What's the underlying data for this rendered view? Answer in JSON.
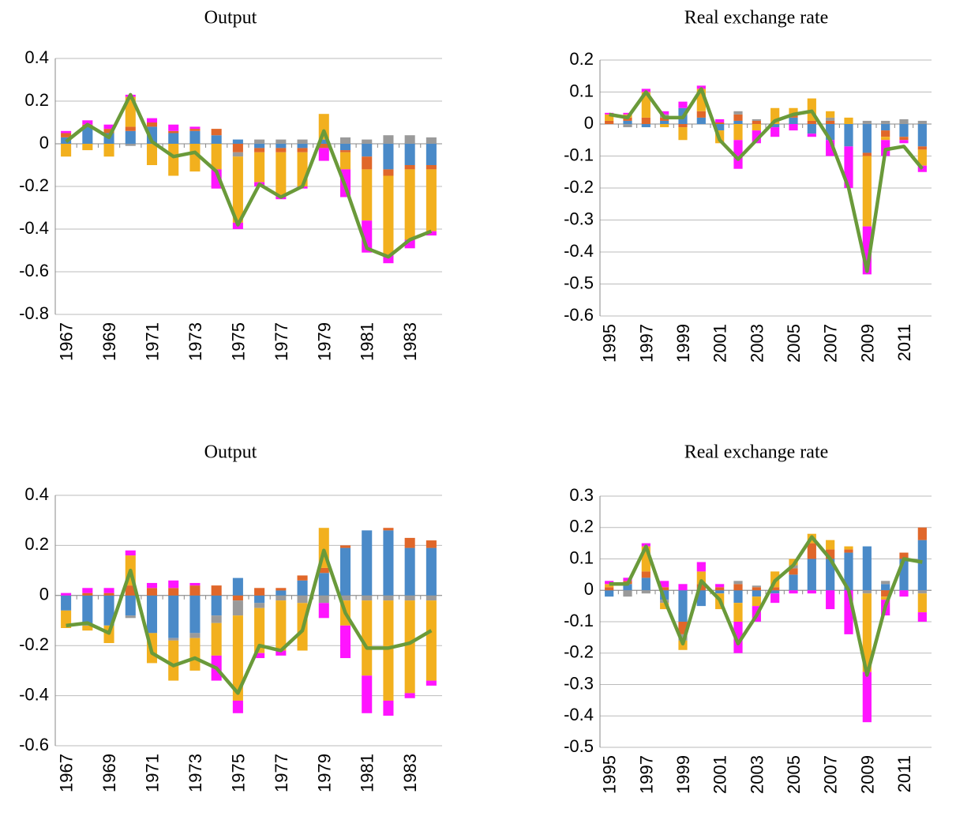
{
  "chart_data": [
    {
      "type": "bar",
      "title": "Output",
      "categories": [
        "1967",
        null,
        "1969",
        null,
        "1971",
        null,
        "1973",
        null,
        "1975",
        null,
        "1977",
        null,
        "1979",
        null,
        "1981",
        null,
        "1983",
        null
      ],
      "ylim": [
        -0.8,
        0.4
      ],
      "yticks": [
        -0.8,
        -0.6,
        -0.4,
        -0.2,
        0,
        0.2,
        0.4
      ],
      "grid": true,
      "series": [
        {
          "color": "#4a8ac8",
          "values": [
            0.03,
            0.08,
            0.05,
            0.06,
            0.08,
            0.05,
            0.06,
            0.04,
            0.02,
            -0.02,
            -0.02,
            -0.02,
            0.02,
            -0.03,
            -0.06,
            -0.12,
            -0.1,
            -0.1
          ]
        },
        {
          "color": "#e0672a",
          "values": [
            0.02,
            0.01,
            0.02,
            0.02,
            0.02,
            0.01,
            0.01,
            0.03,
            -0.04,
            -0.02,
            -0.02,
            -0.02,
            -0.02,
            -0.01,
            -0.06,
            -0.03,
            -0.02,
            -0.02
          ]
        },
        {
          "color": "#9a9a9a",
          "values": [
            0,
            0,
            0,
            -0.01,
            0,
            0,
            0,
            0,
            -0.02,
            0.02,
            0.02,
            0.02,
            0,
            0.03,
            0.02,
            0.04,
            0.04,
            0.03
          ]
        },
        {
          "color": "#f2b01e",
          "values": [
            -0.06,
            -0.03,
            -0.06,
            0.14,
            -0.1,
            -0.15,
            -0.13,
            -0.12,
            -0.31,
            -0.14,
            -0.2,
            -0.16,
            0.12,
            -0.08,
            -0.24,
            -0.37,
            -0.33,
            -0.29
          ]
        },
        {
          "color": "#ff14ff",
          "values": [
            0.01,
            0.02,
            0.02,
            0.01,
            0.02,
            0.03,
            0.01,
            -0.09,
            -0.03,
            -0.02,
            -0.02,
            -0.01,
            -0.06,
            -0.13,
            -0.15,
            -0.04,
            -0.04,
            -0.02
          ]
        },
        {
          "type": "line",
          "color": "#6a9a3a",
          "values": [
            0.01,
            0.09,
            0.03,
            0.23,
            0.01,
            -0.06,
            -0.04,
            -0.13,
            -0.38,
            -0.19,
            -0.25,
            -0.2,
            0.06,
            -0.2,
            -0.49,
            -0.53,
            -0.45,
            -0.41
          ]
        }
      ]
    },
    {
      "type": "bar",
      "title": "Real exchange rate",
      "categories": [
        "1995",
        null,
        "1997",
        null,
        "1999",
        null,
        "2001",
        null,
        "2003",
        null,
        "2005",
        null,
        "2007",
        null,
        "2009",
        null,
        "2011",
        null
      ],
      "ylim": [
        -0.6,
        0.2
      ],
      "yticks": [
        -0.6,
        -0.5,
        -0.4,
        -0.3,
        -0.2,
        -0.1,
        0,
        0.1,
        0.2
      ],
      "grid": true,
      "series": [
        {
          "color": "#4a8ac8",
          "values": [
            0,
            0.01,
            -0.01,
            0.01,
            0.05,
            0.02,
            -0.02,
            0.01,
            0,
            -0.01,
            0.02,
            -0.03,
            -0.05,
            -0.07,
            -0.09,
            -0.02,
            -0.04,
            -0.07
          ]
        },
        {
          "color": "#e0672a",
          "values": [
            0.01,
            0.01,
            0.02,
            0.01,
            -0.01,
            0.02,
            0.005,
            0.02,
            0.01,
            0,
            0.01,
            0.01,
            0.01,
            0,
            -0.01,
            -0.02,
            -0.01,
            -0.01
          ]
        },
        {
          "color": "#9a9a9a",
          "values": [
            0,
            -0.01,
            0,
            0.01,
            0,
            0,
            0,
            0.01,
            0.005,
            0,
            0,
            0,
            0.01,
            0,
            0.01,
            0.01,
            0.015,
            0.01
          ]
        },
        {
          "color": "#f2b01e",
          "values": [
            0.02,
            0.01,
            0.08,
            -0.01,
            -0.04,
            0.07,
            -0.04,
            -0.05,
            -0.02,
            0.05,
            0.02,
            0.07,
            0.02,
            0.02,
            -0.22,
            -0.01,
            0,
            -0.05
          ]
        },
        {
          "color": "#ff14ff",
          "values": [
            0.005,
            0.005,
            0.01,
            0.01,
            0.02,
            0.01,
            0.01,
            -0.09,
            -0.04,
            -0.03,
            -0.02,
            -0.01,
            -0.05,
            -0.13,
            -0.15,
            -0.05,
            -0.01,
            -0.02
          ]
        },
        {
          "type": "line",
          "color": "#6a9a3a",
          "values": [
            0.03,
            0.02,
            0.1,
            0.02,
            0.02,
            0.11,
            -0.05,
            -0.11,
            -0.05,
            0.01,
            0.03,
            0.04,
            -0.05,
            -0.2,
            -0.46,
            -0.08,
            -0.07,
            -0.14
          ]
        }
      ]
    },
    {
      "type": "bar",
      "title": "Output",
      "categories": [
        "1967",
        null,
        "1969",
        null,
        "1971",
        null,
        "1973",
        null,
        "1975",
        null,
        "1977",
        null,
        "1979",
        null,
        "1981",
        null,
        "1983",
        null
      ],
      "ylim": [
        -0.6,
        0.4
      ],
      "yticks": [
        -0.6,
        -0.4,
        -0.2,
        0,
        0.2,
        0.4
      ],
      "grid": true,
      "series": [
        {
          "color": "#4a8ac8",
          "values": [
            -0.06,
            -0.12,
            -0.12,
            -0.08,
            -0.15,
            -0.17,
            -0.15,
            -0.08,
            0.07,
            -0.03,
            0.02,
            0.06,
            0.09,
            0.19,
            0.26,
            0.26,
            0.19,
            0.19
          ]
        },
        {
          "color": "#e0672a",
          "values": [
            0,
            0.01,
            0.01,
            0.04,
            0.03,
            0.03,
            0.04,
            0.04,
            -0.02,
            0.03,
            0.01,
            0.02,
            0.02,
            0.01,
            0,
            0.01,
            0.04,
            0.03
          ]
        },
        {
          "color": "#9a9a9a",
          "values": [
            0,
            0,
            0,
            -0.01,
            0,
            -0.01,
            -0.02,
            -0.03,
            -0.06,
            -0.02,
            -0.02,
            -0.03,
            -0.03,
            -0.02,
            -0.02,
            -0.02,
            -0.02,
            -0.02
          ]
        },
        {
          "color": "#f2b01e",
          "values": [
            -0.07,
            -0.02,
            -0.07,
            0.12,
            -0.12,
            -0.16,
            -0.13,
            -0.13,
            -0.34,
            -0.18,
            -0.2,
            -0.19,
            0.16,
            -0.1,
            -0.3,
            -0.4,
            -0.37,
            -0.32
          ]
        },
        {
          "color": "#ff14ff",
          "values": [
            0.01,
            0.02,
            0.02,
            0.02,
            0.02,
            0.03,
            0.01,
            -0.1,
            -0.05,
            -0.02,
            -0.02,
            0,
            -0.06,
            -0.13,
            -0.15,
            -0.06,
            -0.02,
            -0.02
          ]
        },
        {
          "type": "line",
          "color": "#6a9a3a",
          "values": [
            -0.12,
            -0.11,
            -0.15,
            0.1,
            -0.23,
            -0.28,
            -0.25,
            -0.29,
            -0.39,
            -0.2,
            -0.22,
            -0.14,
            0.18,
            -0.07,
            -0.21,
            -0.21,
            -0.19,
            -0.14
          ]
        }
      ]
    },
    {
      "type": "bar",
      "title": "Real exchange rate",
      "categories": [
        "1995",
        null,
        "1997",
        null,
        "1999",
        null,
        "2001",
        null,
        "2003",
        null,
        "2005",
        null,
        "2007",
        null,
        "2009",
        null,
        "2011",
        null
      ],
      "ylim": [
        -0.5,
        0.3
      ],
      "yticks": [
        -0.5,
        -0.4,
        -0.3,
        -0.2,
        -0.1,
        0,
        0.1,
        0.2,
        0.3
      ],
      "grid": true,
      "series": [
        {
          "color": "#4a8ac8",
          "values": [
            -0.02,
            0.02,
            0.04,
            -0.03,
            -0.1,
            -0.05,
            -0.01,
            -0.04,
            -0.02,
            -0.01,
            0.05,
            0.1,
            0.1,
            0.12,
            0.14,
            0.02,
            0.1,
            0.16
          ]
        },
        {
          "color": "#e0672a",
          "values": [
            0.01,
            0.01,
            0.02,
            0.01,
            -0.04,
            0.02,
            0.01,
            0.02,
            0.01,
            0.01,
            0.02,
            0.05,
            0.03,
            0.01,
            0,
            -0.02,
            0.02,
            0.04
          ]
        },
        {
          "color": "#9a9a9a",
          "values": [
            0,
            -0.02,
            -0.01,
            -0.01,
            -0.02,
            0,
            0,
            0.01,
            0.005,
            0,
            0.01,
            0,
            0,
            0,
            -0.01,
            0.01,
            0,
            -0.01
          ]
        },
        {
          "color": "#f2b01e",
          "values": [
            0.01,
            0,
            0.08,
            -0.02,
            -0.03,
            0.04,
            -0.05,
            -0.06,
            -0.03,
            0.05,
            0.02,
            0.03,
            0.03,
            0.01,
            -0.25,
            -0.01,
            0,
            -0.06
          ]
        },
        {
          "color": "#ff14ff",
          "values": [
            0.01,
            0.01,
            0.01,
            0.02,
            0.02,
            0.03,
            0.01,
            -0.1,
            -0.05,
            -0.03,
            -0.01,
            -0.01,
            -0.06,
            -0.14,
            -0.16,
            -0.05,
            -0.02,
            -0.03
          ]
        },
        {
          "type": "line",
          "color": "#6a9a3a",
          "values": [
            0.02,
            0.02,
            0.14,
            -0.03,
            -0.17,
            0.03,
            -0.03,
            -0.17,
            -0.08,
            0.03,
            0.08,
            0.17,
            0.1,
            0,
            -0.27,
            -0.05,
            0.1,
            0.09
          ]
        }
      ]
    }
  ]
}
